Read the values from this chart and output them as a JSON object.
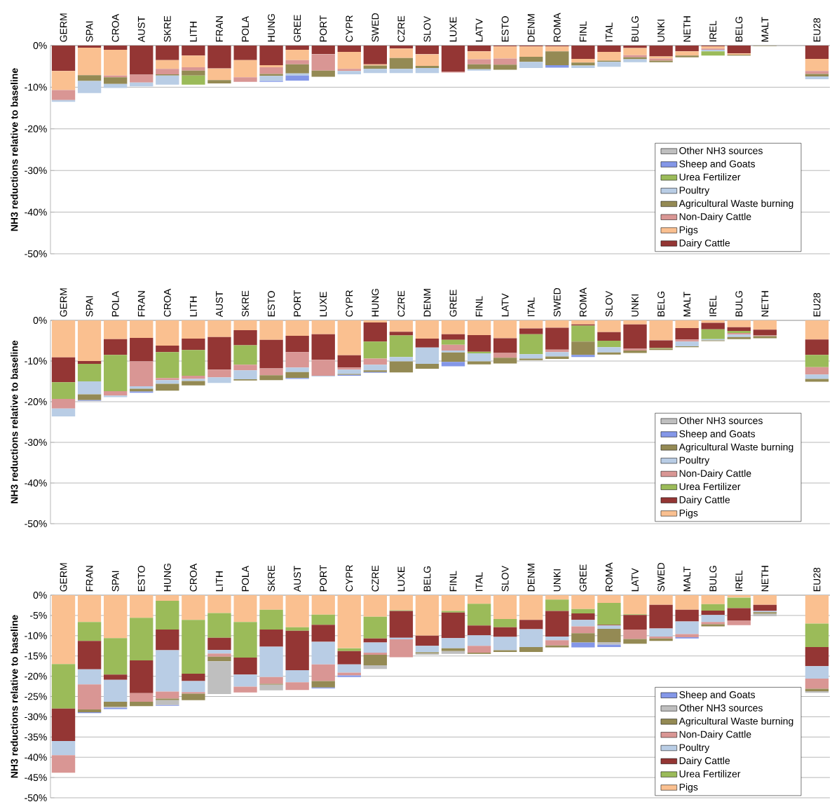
{
  "chart_data": [
    {
      "type": "bar",
      "stacked": true,
      "ylabel": "NH3 reductions relative to baseline",
      "grid": "y",
      "legend": "bottom right",
      "categories": [
        "GERM",
        "SPAI",
        "CROA",
        "AUST",
        "SKRE",
        "LITH",
        "FRAN",
        "POLA",
        "HUNG",
        "GREE",
        "PORT",
        "CYPR",
        "SWED",
        "CZRE",
        "SLOV",
        "LUXE",
        "LATV",
        "ESTO",
        "DENM",
        "ROMA",
        "FINL",
        "ITAL",
        "BULG",
        "UNKI",
        "NETH",
        "IREL",
        "BELG",
        "MALT",
        null,
        "EU28"
      ],
      "ylim": [
        -50,
        0
      ],
      "yticks": [
        {
          "value": 0,
          "label": "0%"
        },
        {
          "value": -10,
          "label": "-10%"
        },
        {
          "value": -20,
          "label": "-20%"
        },
        {
          "value": -30,
          "label": "-30%"
        },
        {
          "value": -40,
          "label": "-40%"
        },
        {
          "value": -50,
          "label": "-50%"
        }
      ],
      "series": [
        {
          "name": "Dairy Cattle",
          "color": "#943634",
          "values": [
            -6.1,
            -0.5,
            -1.0,
            -7.0,
            -3.5,
            -2.4,
            -5.5,
            -3.5,
            -4.7,
            -1.0,
            -2.1,
            -1.5,
            -4.5,
            -0.7,
            -2.1,
            -6.3,
            -1.4,
            -0.2,
            -0.2,
            -0.2,
            -3.2,
            -1.5,
            -0.6,
            -2.6,
            -1.4,
            -0.2,
            -1.9,
            null,
            null,
            -3.2
          ]
        },
        {
          "name": "Pigs",
          "color": "#fac090",
          "values": [
            -4.6,
            -6.6,
            -6.2,
            null,
            -2.1,
            -2.8,
            -2.8,
            -4.1,
            -0.5,
            -2.5,
            null,
            -4.1,
            -0.3,
            -2.3,
            -2.8,
            null,
            -1.9,
            -2.9,
            -2.5,
            -1.2,
            -0.9,
            -2.1,
            -1.7,
            -0.5,
            -1.0,
            -0.5,
            -0.3,
            null,
            null,
            -2.9
          ]
        },
        {
          "name": "Non-Dairy Cattle",
          "color": "#d99694",
          "values": [
            -2.4,
            null,
            -0.4,
            -1.9,
            -1.3,
            -0.8,
            null,
            -1.1,
            -1.6,
            -1.0,
            -3.9,
            -0.5,
            null,
            null,
            null,
            -0.2,
            -1.2,
            -1.5,
            null,
            null,
            null,
            null,
            -0.5,
            -0.5,
            null,
            -0.3,
            null,
            null,
            null,
            -0.7
          ]
        },
        {
          "name": "Agricultural Waste burning",
          "color": "#948a54",
          "values": [
            null,
            -1.4,
            -1.6,
            null,
            -0.3,
            -1.2,
            -0.8,
            null,
            -0.5,
            -2.2,
            -1.5,
            null,
            -0.8,
            -2.6,
            -0.5,
            null,
            -1.2,
            -1.2,
            -1.2,
            -3.3,
            -0.7,
            -0.3,
            -0.5,
            -0.4,
            -0.4,
            null,
            -0.2,
            -0.1,
            null,
            -0.6
          ]
        },
        {
          "name": "Poultry",
          "color": "#b9cde5",
          "values": [
            -0.4,
            -2.9,
            -1.0,
            -0.9,
            -2.2,
            null,
            null,
            null,
            -1.2,
            -0.5,
            null,
            -0.8,
            -1.0,
            -1.0,
            -1.2,
            null,
            -0.3,
            null,
            -1.5,
            null,
            -0.6,
            -1.2,
            -0.7,
            null,
            null,
            -0.4,
            null,
            null,
            null,
            -0.7
          ]
        },
        {
          "name": "Urea Fertilizer",
          "color": "#9bbb59",
          "values": [
            null,
            null,
            null,
            null,
            null,
            -2.2,
            null,
            null,
            null,
            null,
            null,
            null,
            null,
            null,
            null,
            null,
            null,
            null,
            null,
            null,
            null,
            null,
            null,
            null,
            null,
            -1.0,
            null,
            null,
            null,
            null
          ]
        },
        {
          "name": "Sheep and Goats",
          "color": "#8497e8",
          "values": [
            null,
            null,
            null,
            null,
            null,
            null,
            null,
            null,
            -0.2,
            -1.2,
            null,
            null,
            null,
            null,
            null,
            null,
            null,
            null,
            null,
            -0.6,
            null,
            null,
            null,
            null,
            null,
            null,
            null,
            null,
            null,
            null
          ]
        },
        {
          "name": "Other NH3 sources",
          "color": "#bfbfbf",
          "values": [
            null,
            null,
            null,
            null,
            null,
            null,
            null,
            null,
            null,
            null,
            null,
            null,
            null,
            null,
            null,
            null,
            null,
            null,
            null,
            null,
            null,
            null,
            null,
            null,
            null,
            null,
            null,
            null,
            null,
            null
          ]
        }
      ]
    },
    {
      "type": "bar",
      "stacked": true,
      "ylabel": "NH3 reductions relative to baseline",
      "grid": "y",
      "legend": "bottom right",
      "categories": [
        "GERM",
        "SPAI",
        "POLA",
        "FRAN",
        "CROA",
        "LITH",
        "AUST",
        "SKRE",
        "ESTO",
        "PORT",
        "LUXE",
        "CYPR",
        "HUNG",
        "CZRE",
        "DENM",
        "GREE",
        "FINL",
        "LATV",
        "ITAL",
        "SWED",
        "ROMA",
        "SLOV",
        "UNKI",
        "BELG",
        "MALT",
        "IREL",
        "BULG",
        "NETH",
        null,
        "EU28"
      ],
      "ylim": [
        -50,
        0
      ],
      "yticks": [
        {
          "value": 0,
          "label": "0%"
        },
        {
          "value": -10,
          "label": "-10%"
        },
        {
          "value": -20,
          "label": "-20%"
        },
        {
          "value": -30,
          "label": "-30%"
        },
        {
          "value": -40,
          "label": "-40%"
        },
        {
          "value": -50,
          "label": "-50%"
        }
      ],
      "series": [
        {
          "name": "Pigs",
          "color": "#fac090",
          "values": [
            -9.1,
            -10.0,
            -4.6,
            -4.3,
            -6.2,
            -4.5,
            -4.1,
            -2.4,
            -4.8,
            -3.8,
            -3.4,
            -8.6,
            -0.5,
            -2.8,
            -4.5,
            -3.4,
            -3.6,
            -4.4,
            -2.0,
            -1.8,
            -1.0,
            -2.9,
            -1.0,
            -4.9,
            -1.9,
            -0.6,
            -1.7,
            -2.3,
            null,
            -4.7
          ]
        },
        {
          "name": "Dairy Cattle",
          "color": "#943634",
          "values": [
            -6.1,
            -0.7,
            -3.9,
            -5.8,
            -1.6,
            -2.8,
            -8.0,
            -3.7,
            -7.0,
            -4.0,
            -6.3,
            -3.0,
            -4.7,
            -0.9,
            -2.2,
            -1.4,
            -4.1,
            -3.6,
            -1.4,
            -5.4,
            -0.3,
            -2.1,
            -6.0,
            -1.9,
            -2.8,
            -1.6,
            -0.9,
            -1.4,
            null,
            -3.8
          ]
        },
        {
          "name": "Urea Fertilizer",
          "color": "#9bbb59",
          "values": [
            -4.1,
            -4.3,
            -8.9,
            null,
            -6.4,
            -6.3,
            null,
            -4.8,
            null,
            null,
            null,
            null,
            -4.2,
            -5.3,
            null,
            -1.2,
            -0.4,
            null,
            -4.9,
            null,
            -3.9,
            -1.6,
            null,
            -0.2,
            null,
            -2.4,
            -0.5,
            null,
            null,
            -3.0
          ]
        },
        {
          "name": "Non-Dairy Cattle",
          "color": "#d99694",
          "values": [
            -2.4,
            null,
            -1.1,
            -6.1,
            -0.5,
            -0.8,
            -1.9,
            -1.4,
            -1.7,
            -3.8,
            -3.9,
            -0.5,
            -1.5,
            null,
            null,
            -1.4,
            null,
            -1.2,
            null,
            -0.6,
            null,
            null,
            -0.4,
            null,
            -0.5,
            null,
            -0.4,
            -0.2,
            null,
            -1.8
          ]
        },
        {
          "name": "Poultry",
          "color": "#b9cde5",
          "values": [
            -1.9,
            -3.2,
            -0.4,
            -0.6,
            -0.9,
            -0.5,
            -1.4,
            -2.2,
            null,
            -1.1,
            -0.2,
            -1.1,
            -1.4,
            -1.1,
            -4.0,
            -0.5,
            -2.0,
            null,
            -1.1,
            -1.1,
            null,
            -1.3,
            null,
            null,
            -1.2,
            -0.3,
            -0.6,
            null,
            null,
            -1.1
          ]
        },
        {
          "name": "Agricultural Waste burning",
          "color": "#948a54",
          "values": [
            null,
            -1.4,
            null,
            -0.7,
            -1.7,
            -1.1,
            null,
            -0.3,
            -1.2,
            -1.5,
            null,
            -0.2,
            -0.4,
            -2.7,
            -1.2,
            -2.3,
            -0.7,
            -1.4,
            -0.4,
            -0.6,
            -3.3,
            -0.5,
            -0.6,
            -0.3,
            -0.2,
            -0.2,
            -0.5,
            -0.5,
            null,
            -0.7
          ]
        },
        {
          "name": "Sheep and Goats",
          "color": "#8497e8",
          "values": [
            null,
            -0.2,
            null,
            -0.3,
            null,
            null,
            null,
            null,
            null,
            -0.2,
            null,
            -0.2,
            -0.2,
            null,
            null,
            -1.1,
            null,
            null,
            null,
            null,
            -0.5,
            null,
            null,
            null,
            null,
            null,
            null,
            null,
            null,
            null
          ]
        },
        {
          "name": "Other NH3 sources",
          "color": "#bfbfbf",
          "values": [
            null,
            null,
            null,
            null,
            null,
            null,
            null,
            null,
            null,
            null,
            null,
            null,
            null,
            null,
            null,
            null,
            null,
            null,
            null,
            null,
            null,
            null,
            null,
            null,
            null,
            null,
            null,
            null,
            null,
            null
          ]
        }
      ]
    },
    {
      "type": "bar",
      "stacked": true,
      "ylabel": "NH3 reductions relative to baseline",
      "grid": "y",
      "legend": "bottom right",
      "categories": [
        "GERM",
        "FRAN",
        "SPAI",
        "ESTO",
        "HUNG",
        "CROA",
        "LITH",
        "POLA",
        "SKRE",
        "AUST",
        "PORT",
        "CYPR",
        "CZRE",
        "LUXE",
        "BELG",
        "FINL",
        "ITAL",
        "SLOV",
        "DENM",
        "UNKI",
        "GREE",
        "ROMA",
        "LATV",
        "SWED",
        "MALT",
        "BULG",
        "IREL",
        "NETH",
        null,
        "EU28"
      ],
      "ylim": [
        -50,
        0
      ],
      "yticks": [
        {
          "value": 0,
          "label": "0%"
        },
        {
          "value": -5,
          "label": "-5%"
        },
        {
          "value": -10,
          "label": "-10%"
        },
        {
          "value": -15,
          "label": "-15%"
        },
        {
          "value": -20,
          "label": "-20%"
        },
        {
          "value": -25,
          "label": "-25%"
        },
        {
          "value": -30,
          "label": "-30%"
        },
        {
          "value": -35,
          "label": "-35%"
        },
        {
          "value": -40,
          "label": "-40%"
        },
        {
          "value": -45,
          "label": "-45%"
        },
        {
          "value": -50,
          "label": "-50%"
        }
      ],
      "series": [
        {
          "name": "Pigs",
          "color": "#fac090",
          "values": [
            -17.0,
            -6.6,
            -10.6,
            -5.6,
            -1.4,
            -6.1,
            -4.4,
            -6.6,
            -3.6,
            -7.9,
            -4.8,
            -13.1,
            -5.3,
            -3.7,
            -10.0,
            -3.9,
            -2.1,
            -5.9,
            -6.1,
            -1.1,
            -3.4,
            -1.9,
            -4.7,
            -2.4,
            -3.6,
            -2.2,
            -0.6,
            -2.4,
            null,
            -7.0
          ]
        },
        {
          "name": "Urea Fertilizer",
          "color": "#9bbb59",
          "values": [
            -11.0,
            -4.7,
            -9.0,
            -10.5,
            -7.1,
            -13.3,
            -6.1,
            -8.8,
            -4.9,
            -0.9,
            -2.5,
            -0.7,
            -5.4,
            -0.2,
            null,
            -0.4,
            -5.4,
            -2.0,
            null,
            -2.8,
            -1.1,
            -5.4,
            -0.2,
            null,
            null,
            -1.6,
            -2.6,
            null,
            null,
            -5.8
          ]
        },
        {
          "name": "Dairy Cattle",
          "color": "#943634",
          "values": [
            -8.0,
            -7.0,
            -1.3,
            -8.1,
            -5.1,
            -1.8,
            -3.0,
            -4.2,
            -4.2,
            -9.7,
            -4.2,
            -3.3,
            -1.0,
            -6.6,
            -2.5,
            -6.3,
            -2.4,
            -2.4,
            -2.3,
            -6.3,
            -1.6,
            -0.2,
            -3.6,
            -5.8,
            -2.9,
            -1.1,
            -3.1,
            -1.5,
            null,
            -4.7
          ]
        },
        {
          "name": "Poultry",
          "color": "#b9cde5",
          "values": [
            -3.5,
            -3.7,
            -5.4,
            null,
            -10.2,
            -2.7,
            -0.9,
            -3.0,
            -7.5,
            -3.0,
            -5.6,
            -2.0,
            -2.5,
            -0.4,
            -1.6,
            -2.5,
            -2.6,
            -3.3,
            -4.4,
            -0.9,
            -1.6,
            -0.8,
            null,
            -2.0,
            -3.1,
            -1.7,
            null,
            -0.3,
            null,
            -3.1
          ]
        },
        {
          "name": "Non-Dairy Cattle",
          "color": "#d99694",
          "values": [
            -4.3,
            -6.2,
            null,
            -2.1,
            -1.7,
            -0.4,
            -0.8,
            -1.4,
            -1.7,
            -1.9,
            -4.1,
            -0.7,
            -0.5,
            -4.4,
            null,
            null,
            -1.7,
            null,
            null,
            -1.3,
            -1.7,
            null,
            -2.3,
            -0.5,
            -0.8,
            -0.6,
            -1.1,
            null,
            null,
            -2.5
          ]
        },
        {
          "name": "Agricultural Waste burning",
          "color": "#948a54",
          "values": [
            null,
            -0.7,
            -1.2,
            -1.1,
            -0.4,
            -1.6,
            -1.1,
            null,
            -0.2,
            null,
            -1.6,
            null,
            -2.6,
            null,
            -0.3,
            -0.7,
            -0.3,
            -0.4,
            -1.2,
            -0.5,
            -2.3,
            -3.3,
            -1.2,
            -0.6,
            null,
            -0.5,
            null,
            -0.4,
            null,
            -0.6
          ]
        },
        {
          "name": "Other NH3 sources",
          "color": "#bfbfbf",
          "values": [
            null,
            null,
            -0.3,
            null,
            -1.2,
            null,
            -8.1,
            null,
            -1.4,
            null,
            null,
            null,
            -0.9,
            null,
            -0.3,
            -0.7,
            null,
            null,
            null,
            null,
            null,
            -0.6,
            null,
            null,
            null,
            null,
            null,
            -0.6,
            null,
            -0.4
          ]
        },
        {
          "name": "Sheep and Goats",
          "color": "#8497e8",
          "values": [
            null,
            -0.2,
            -0.3,
            null,
            -0.2,
            null,
            null,
            null,
            null,
            null,
            -0.2,
            -0.4,
            null,
            null,
            null,
            null,
            null,
            null,
            null,
            null,
            -1.2,
            -0.6,
            null,
            null,
            -0.3,
            null,
            null,
            null,
            null,
            null
          ]
        }
      ]
    }
  ]
}
